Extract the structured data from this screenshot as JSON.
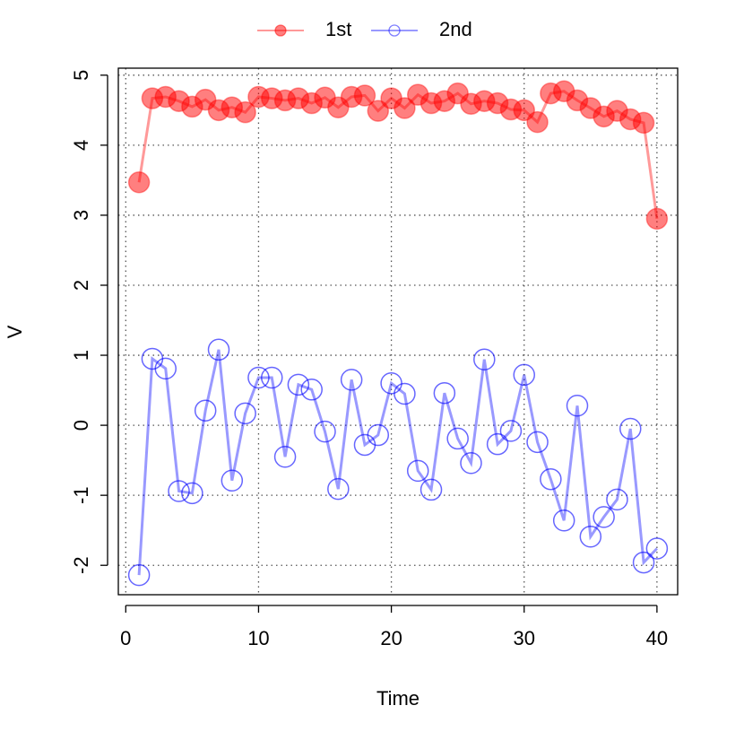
{
  "chart_data": {
    "type": "line",
    "x_label": "Time",
    "y_label": "V",
    "x": [
      1,
      2,
      3,
      4,
      5,
      6,
      7,
      8,
      9,
      10,
      11,
      12,
      13,
      14,
      15,
      16,
      17,
      18,
      19,
      20,
      21,
      22,
      23,
      24,
      25,
      26,
      27,
      28,
      29,
      30,
      31,
      32,
      33,
      34,
      35,
      36,
      37,
      38,
      39,
      40
    ],
    "series": [
      {
        "name": "1st",
        "color": "#ff0000",
        "filled": true,
        "values": [
          3.47,
          4.67,
          4.69,
          4.63,
          4.55,
          4.65,
          4.5,
          4.54,
          4.47,
          4.69,
          4.67,
          4.64,
          4.67,
          4.6,
          4.68,
          4.54,
          4.69,
          4.71,
          4.49,
          4.67,
          4.53,
          4.72,
          4.6,
          4.63,
          4.74,
          4.59,
          4.63,
          4.6,
          4.51,
          4.5,
          4.33,
          4.74,
          4.77,
          4.64,
          4.53,
          4.41,
          4.49,
          4.37,
          4.32,
          2.95
        ]
      },
      {
        "name": "2nd",
        "color": "#0000ff",
        "filled": false,
        "values": [
          -2.14,
          0.95,
          0.81,
          -0.94,
          -0.97,
          0.21,
          1.08,
          -0.79,
          0.17,
          0.68,
          0.68,
          -0.45,
          0.58,
          0.51,
          -0.09,
          -0.91,
          0.65,
          -0.28,
          -0.14,
          0.6,
          0.45,
          -0.65,
          -0.92,
          0.46,
          -0.19,
          -0.54,
          0.94,
          -0.27,
          -0.08,
          0.72,
          -0.24,
          -0.77,
          -1.36,
          0.28,
          -1.59,
          -1.31,
          -1.06,
          -0.05,
          -1.96,
          -1.76
        ]
      }
    ],
    "xlim": [
      -0.56,
      41.56
    ],
    "ylim": [
      -2.42,
      5.1
    ],
    "xticks": [
      0,
      10,
      20,
      30,
      40
    ],
    "yticks": [
      -2,
      -1,
      0,
      1,
      2,
      3,
      4,
      5
    ],
    "grid": true,
    "legend": "top"
  }
}
